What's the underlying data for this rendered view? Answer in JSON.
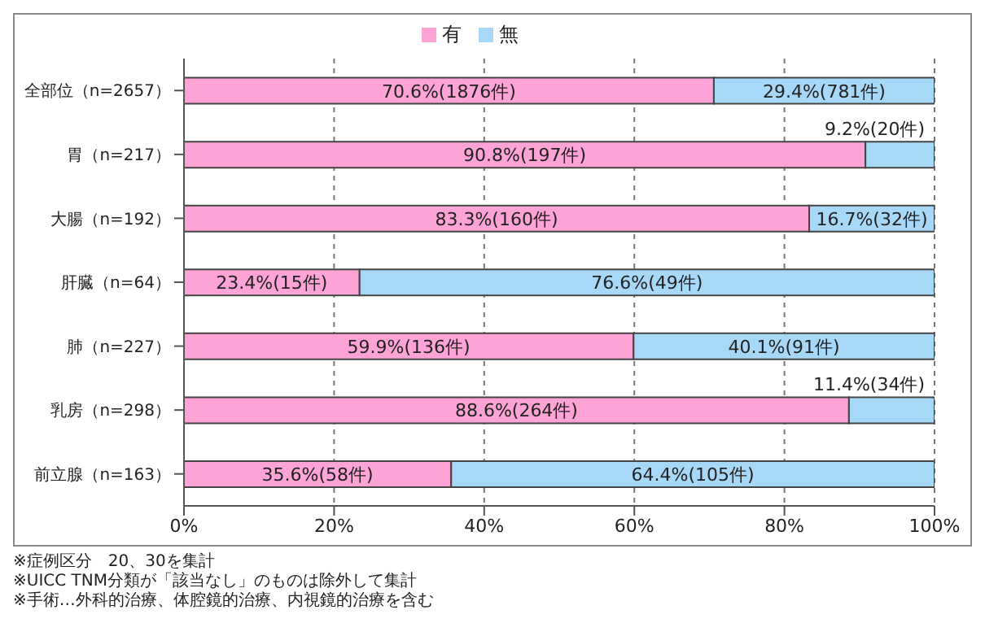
{
  "chart_data": {
    "type": "bar",
    "orientation": "horizontal",
    "stacked": true,
    "categories": [
      "全部位（n=2657）",
      "胃（n=217）",
      "大腸（n=192）",
      "肝臓（n=64）",
      "肺（n=227）",
      "乳房（n=298）",
      "前立腺（n=163）"
    ],
    "series": [
      {
        "name": "有",
        "color": "#fda3d6",
        "values": [
          70.6,
          90.8,
          83.3,
          23.4,
          59.9,
          88.6,
          35.6
        ],
        "value_labels": [
          "70.6%(1876件)",
          "90.8%(197件)",
          "83.3%(160件)",
          "23.4%(15件)",
          "59.9%(136件)",
          "88.6%(264件)",
          "35.6%(58件)"
        ]
      },
      {
        "name": "無",
        "color": "#a8d8f8",
        "values": [
          29.4,
          9.2,
          16.7,
          76.6,
          40.1,
          11.4,
          64.4
        ],
        "value_labels": [
          "29.4%(781件)",
          "9.2%(20件)",
          "16.7%(32件)",
          "76.6%(49件)",
          "40.1%(91件)",
          "11.4%(34件)",
          "64.4%(105件)"
        ]
      }
    ],
    "xlim": [
      0,
      100
    ],
    "xticks": [
      {
        "value": 0,
        "label": "0%"
      },
      {
        "value": 20,
        "label": "20%"
      },
      {
        "value": 40,
        "label": "40%"
      },
      {
        "value": 60,
        "label": "60%"
      },
      {
        "value": 80,
        "label": "80%"
      },
      {
        "value": 100,
        "label": "100%"
      }
    ],
    "grid": "x",
    "legend": "top",
    "annotations": [
      "※症例区分　20、30を集計",
      "※UICC TNM分類が「該当なし」のものは除外して集計",
      "※手術…外科的治療、体腔鏡的治療、内視鏡的治療を含む"
    ]
  }
}
